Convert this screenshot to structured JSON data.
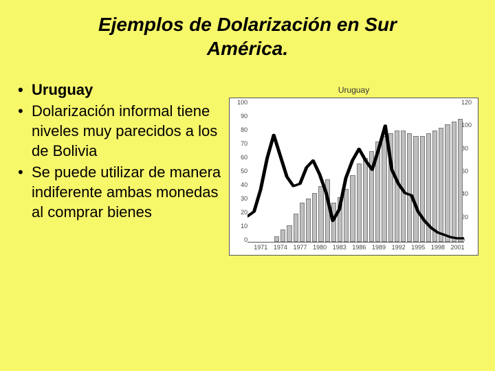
{
  "title_line1": "Ejemplos de Dolarización en Sur",
  "title_line2": "América.",
  "bullets": [
    {
      "text": "Uruguay",
      "bold": true
    },
    {
      "text": "Dolarización informal tiene niveles muy parecidos a los de Bolivia",
      "bold": false
    },
    {
      "text": "Se puede utilizar de manera indiferente ambas monedas al comprar bienes",
      "bold": false
    }
  ],
  "chart": {
    "title": "Uruguay",
    "type": "bar_with_line",
    "background_color": "#ffffff",
    "border_color": "#555555",
    "bar_color": "#bfbfbf",
    "bar_border_color": "#7a7a7a",
    "line_color": "#000000",
    "line_width": 1.6,
    "y_left": {
      "min": 0,
      "max": 100,
      "ticks": [
        0,
        10,
        20,
        30,
        40,
        50,
        60,
        70,
        80,
        90,
        100
      ]
    },
    "y_right": {
      "min": 0,
      "max": 120,
      "ticks": [
        0,
        20,
        40,
        60,
        80,
        100,
        120
      ]
    },
    "years_start": 1969,
    "years_end": 2002,
    "x_tick_labels": [
      1971,
      1974,
      1977,
      1980,
      1983,
      1986,
      1989,
      1992,
      1995,
      1998,
      2001
    ],
    "bars_values": [
      0,
      0,
      0,
      0,
      4,
      9,
      12,
      20,
      28,
      31,
      35,
      40,
      45,
      28,
      32,
      38,
      48,
      56,
      60,
      65,
      72,
      76,
      78,
      80,
      80,
      78,
      76,
      76,
      78,
      80,
      82,
      84,
      86,
      88
    ],
    "line_values": [
      22,
      26,
      45,
      72,
      92,
      74,
      56,
      48,
      50,
      64,
      70,
      58,
      42,
      18,
      28,
      55,
      70,
      80,
      70,
      62,
      80,
      100,
      62,
      50,
      42,
      40,
      26,
      18,
      12,
      8,
      6,
      4,
      3,
      3
    ],
    "tick_font_size": 9,
    "tick_color": "#444444"
  },
  "slide_background": "#f7f76a"
}
